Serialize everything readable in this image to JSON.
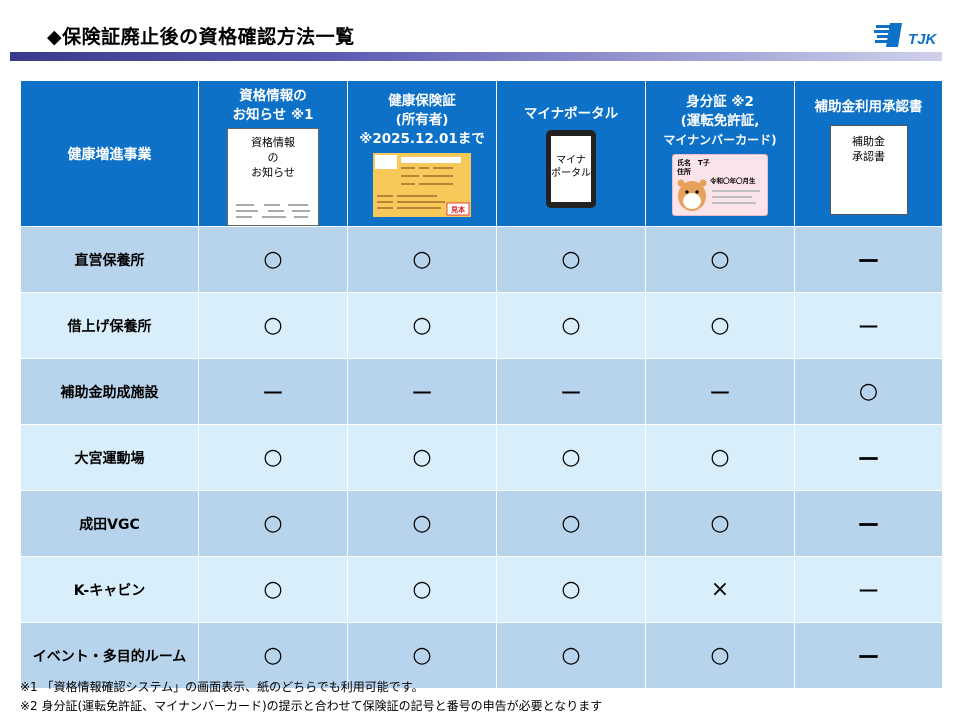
{
  "header": {
    "title": "◆保険証廃止後の資格確認方法一覧",
    "logo_text": "TJK",
    "logo_color": "#0d71c8"
  },
  "table": {
    "corner_label": "健康増進事業",
    "columns": [
      {
        "label_lines": [
          "資格情報の",
          "お知らせ ※1"
        ],
        "icon": "document-icon",
        "thumb_lines": [
          "資格情報",
          "の",
          "お知らせ"
        ]
      },
      {
        "label_lines": [
          "健康保険証",
          "(所有者)",
          "※2025.12.01まで"
        ],
        "icon": "insurance-card-icon",
        "thumb_stamp": "見本"
      },
      {
        "label_lines": [
          "マイナポータル"
        ],
        "icon": "smartphone-icon",
        "thumb_lines": [
          "マイナ",
          "ポータル"
        ]
      },
      {
        "label_lines": [
          "身分証 ※2",
          "(運転免許証,",
          "マイナンバーカード)"
        ],
        "icon": "id-card-icon",
        "thumb_lines": [
          "氏名　T子",
          "住所",
          "令和〇年〇月生"
        ]
      },
      {
        "label_lines": [
          "補助金利用承認書"
        ],
        "icon": "approval-form-icon",
        "thumb_lines": [
          "補助金",
          "承認書"
        ]
      }
    ],
    "rows": [
      {
        "facility": "直営保養所",
        "marks": [
          "○",
          "○",
          "○",
          "○",
          "ー"
        ],
        "bold": true
      },
      {
        "facility": "借上げ保養所",
        "marks": [
          "○",
          "○",
          "○",
          "○",
          "ー"
        ],
        "bold": false
      },
      {
        "facility": "補助金助成施設",
        "marks": [
          "ー",
          "ー",
          "ー",
          "ー",
          "○"
        ],
        "bold": false
      },
      {
        "facility": "大宮運動場",
        "marks": [
          "○",
          "○",
          "○",
          "○",
          "ー"
        ],
        "bold": true
      },
      {
        "facility": "成田VGC",
        "marks": [
          "○",
          "○",
          "○",
          "○",
          "ー"
        ],
        "bold": true
      },
      {
        "facility": "K-キャビン",
        "marks": [
          "○",
          "○",
          "○",
          "×",
          "ー"
        ],
        "bold": false
      },
      {
        "facility": "イベント・多目的ルーム",
        "marks": [
          "○",
          "○",
          "○",
          "○",
          "ー"
        ],
        "bold": true
      }
    ]
  },
  "footnotes": [
    "※1 「資格情報確認システム」の画面表示、紙のどちらでも利用可能です。",
    "※2 身分証(運転免許証、マイナンバーカード)の提示と合わせて保険証の記号と番号の申告が必要となります"
  ],
  "colors": {
    "header_blue": "#0d71c8",
    "row_dark": "#b8d4ec",
    "row_light": "#d8eefb",
    "title_rule": "#3a3a8c"
  }
}
